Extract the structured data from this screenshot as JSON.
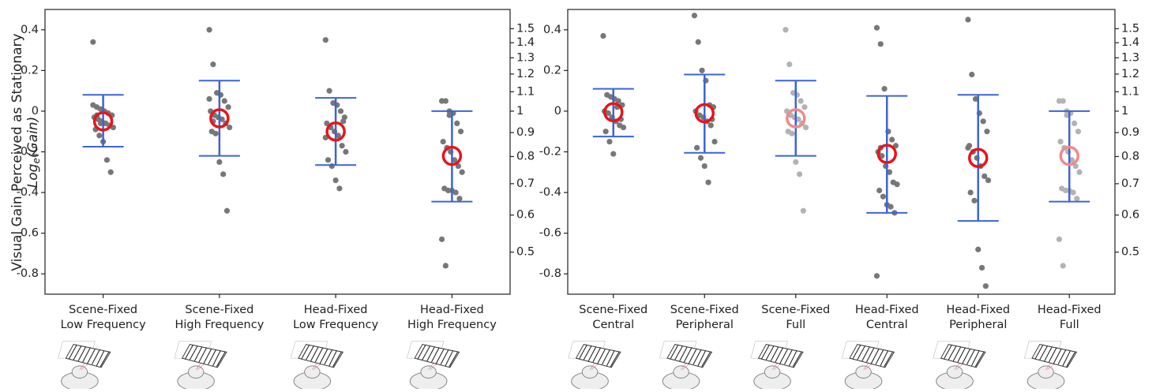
{
  "chart_data": [
    {
      "type": "strip",
      "ylabel": "Visual Gain Perceived as Stationary",
      "ylabel_math": [
        "Log",
        "e",
        "(Gain)"
      ],
      "categories": [
        "Scene-Fixed\nLow Frequency",
        "Scene-Fixed\nHigh Frequency",
        "Head-Fixed\nLow Frequency",
        "Head-Fixed\nHigh Frequency"
      ],
      "means": [
        -0.05,
        -0.035,
        -0.1,
        -0.22
      ],
      "upper": [
        0.08,
        0.15,
        0.065,
        0.0
      ],
      "lower": [
        -0.175,
        -0.22,
        -0.265,
        -0.445
      ],
      "points": [
        [
          0.34,
          0.02,
          0.01,
          0.0,
          -0.01,
          -0.02,
          -0.03,
          -0.04,
          -0.05,
          -0.06,
          -0.07,
          -0.08,
          -0.09,
          -0.12,
          -0.15,
          -0.24,
          -0.3,
          0.03,
          -0.02,
          -0.06
        ],
        [
          0.4,
          0.23,
          0.09,
          0.08,
          0.05,
          0.02,
          0.0,
          -0.02,
          -0.03,
          -0.04,
          -0.06,
          -0.08,
          -0.1,
          -0.11,
          -0.25,
          -0.31,
          -0.49,
          0.06,
          -0.05
        ],
        [
          0.35,
          0.1,
          0.04,
          0.03,
          0.0,
          -0.03,
          -0.06,
          -0.08,
          -0.1,
          -0.12,
          -0.17,
          -0.2,
          -0.24,
          -0.27,
          -0.34,
          -0.38,
          -0.05,
          -0.13
        ],
        [
          0.05,
          0.05,
          0.0,
          -0.01,
          -0.06,
          -0.1,
          -0.15,
          -0.18,
          -0.2,
          -0.24,
          -0.27,
          -0.3,
          -0.38,
          -0.39,
          -0.39,
          -0.4,
          -0.43,
          -0.63,
          -0.76,
          -0.02
        ]
      ],
      "mean_colors": [
        "#e8141c",
        "#e8141c",
        "#e8141c",
        "#e8141c"
      ],
      "point_colors": [
        "#777777",
        "#777777",
        "#777777",
        "#777777"
      ],
      "errorbar_color": "#3c64d8",
      "ylim": [
        -0.9,
        0.5
      ],
      "yticks": [
        0.4,
        0.2,
        0,
        -0.2,
        -0.4,
        -0.6,
        -0.8
      ],
      "y2scale": "log",
      "y2lim": [
        0.4066,
        1.6487
      ],
      "y2ticks": [
        1.5,
        1.4,
        1.3,
        1.2,
        1.1,
        1.0,
        0.9,
        0.8,
        0.7,
        0.6,
        0.5
      ]
    },
    {
      "type": "strip",
      "categories": [
        "Scene-Fixed\nCentral",
        "Scene-Fixed\nPeripheral",
        "Scene-Fixed\nFull",
        "Head-Fixed\nCentral",
        "Head-Fixed\nPeripheral",
        "Head-Fixed\nFull"
      ],
      "means": [
        -0.005,
        -0.01,
        -0.035,
        -0.21,
        -0.23,
        -0.22
      ],
      "upper": [
        0.11,
        0.18,
        0.15,
        0.075,
        0.08,
        0.0
      ],
      "lower": [
        -0.125,
        -0.205,
        -0.22,
        -0.5,
        -0.54,
        -0.445
      ],
      "points": [
        [
          0.37,
          0.08,
          0.07,
          0.06,
          0.05,
          0.03,
          0.0,
          -0.01,
          -0.03,
          -0.05,
          -0.07,
          -0.08,
          -0.1,
          -0.15,
          -0.21,
          0.02,
          -0.04
        ],
        [
          0.47,
          0.34,
          0.2,
          0.15,
          0.03,
          0.02,
          0.0,
          -0.02,
          -0.03,
          -0.05,
          -0.07,
          -0.15,
          -0.18,
          -0.23,
          -0.27,
          -0.35,
          -0.04
        ],
        [
          0.4,
          0.23,
          0.09,
          0.08,
          0.05,
          0.02,
          0.0,
          -0.02,
          -0.03,
          -0.04,
          -0.06,
          -0.08,
          -0.1,
          -0.11,
          -0.25,
          -0.31,
          -0.49
        ],
        [
          0.41,
          0.33,
          0.11,
          -0.1,
          -0.14,
          -0.17,
          -0.2,
          -0.22,
          -0.27,
          -0.3,
          -0.35,
          -0.36,
          -0.39,
          -0.42,
          -0.46,
          -0.47,
          -0.5,
          -0.81,
          -0.18
        ],
        [
          0.45,
          0.18,
          0.06,
          -0.01,
          -0.05,
          -0.1,
          -0.17,
          -0.2,
          -0.23,
          -0.27,
          -0.32,
          -0.34,
          -0.4,
          -0.44,
          -0.68,
          -0.77,
          -0.86,
          -0.18
        ],
        [
          0.05,
          0.05,
          0.0,
          -0.01,
          -0.06,
          -0.1,
          -0.15,
          -0.18,
          -0.2,
          -0.24,
          -0.27,
          -0.3,
          -0.38,
          -0.39,
          -0.39,
          -0.4,
          -0.43,
          -0.63,
          -0.76,
          -0.02
        ]
      ],
      "mean_colors": [
        "#e8141c",
        "#e8141c",
        "#f08a8a",
        "#e8141c",
        "#e8141c",
        "#f08a8a"
      ],
      "point_colors": [
        "#777777",
        "#777777",
        "#b3b3b3",
        "#777777",
        "#777777",
        "#b3b3b3"
      ],
      "errorbar_color": "#3c64d8",
      "ylim": [
        -0.9,
        0.5
      ],
      "yticks": [
        0.4,
        0.2,
        0,
        -0.2,
        -0.4,
        -0.6,
        -0.8
      ],
      "y2scale": "log",
      "y2lim": [
        0.4066,
        1.6487
      ],
      "y2ticks": [
        1.5,
        1.4,
        1.3,
        1.2,
        1.1,
        1.0,
        0.9,
        0.8,
        0.7,
        0.6,
        0.5
      ]
    }
  ]
}
